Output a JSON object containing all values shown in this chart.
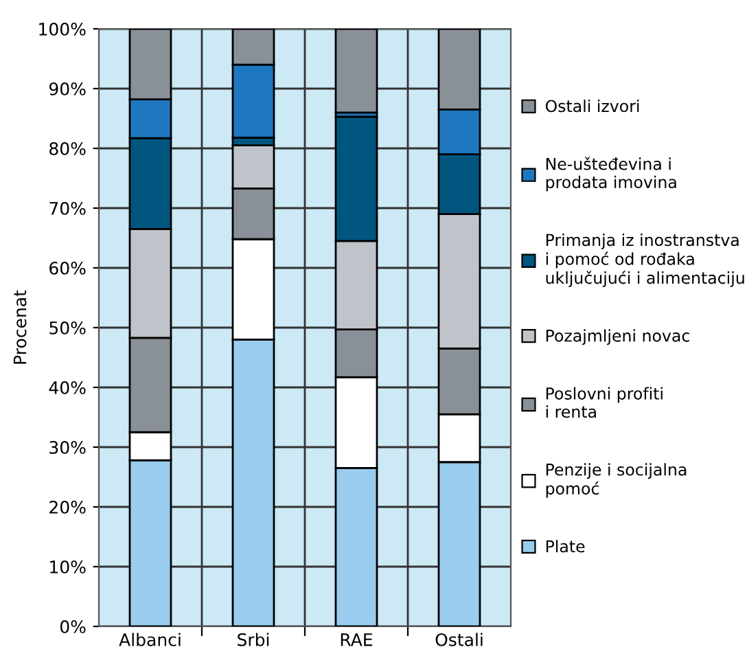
{
  "chart_data": {
    "type": "bar",
    "stacked": true,
    "ylabel": "Procenat",
    "categories": [
      "Albanci",
      "Srbi",
      "RAE",
      "Ostali"
    ],
    "series": [
      {
        "name": "Plate",
        "color": "#99ccee",
        "values": [
          27.8,
          48,
          26.5,
          27.5
        ]
      },
      {
        "name": "Penzije i socijalna\npomoć",
        "color": "#ffffff",
        "values": [
          4.7,
          16.8,
          15.2,
          8
        ]
      },
      {
        "name": "Poslovni profiti\ni renta",
        "color": "#8a9097",
        "values": [
          15.8,
          8.5,
          8,
          11
        ]
      },
      {
        "name": "Pozajmljeni novac",
        "color": "#c0c3ca",
        "values": [
          18.2,
          7.2,
          14.8,
          22.5
        ]
      },
      {
        "name": "Primanja iz inostranstva\ni pomoć od rođaka\nuključujući i alimentaciju",
        "color": "#00567f",
        "values": [
          15.2,
          1.3,
          20.8,
          10
        ]
      },
      {
        "name": "Ne-ušteđevina i\nprodata imovina",
        "color": "#1f78bf",
        "values": [
          6.5,
          12.2,
          0.7,
          7.5
        ]
      },
      {
        "name": "Ostali izvori",
        "color": "#8a9097",
        "values": [
          11.8,
          6,
          14,
          13.5
        ]
      }
    ],
    "ylim": [
      0,
      100
    ],
    "yticks": [
      {
        "value": 0,
        "label": "0%"
      },
      {
        "value": 10,
        "label": "10%"
      },
      {
        "value": 20,
        "label": "20%"
      },
      {
        "value": 30,
        "label": "30%"
      },
      {
        "value": 40,
        "label": "40%"
      },
      {
        "value": 50,
        "label": "50%"
      },
      {
        "value": 60,
        "label": "60%"
      },
      {
        "value": 70,
        "label": "70%"
      },
      {
        "value": 80,
        "label": "80%"
      },
      {
        "value": 90,
        "label": "90%"
      },
      {
        "value": 100,
        "label": "100%"
      }
    ],
    "grid": true,
    "legend": "right"
  }
}
